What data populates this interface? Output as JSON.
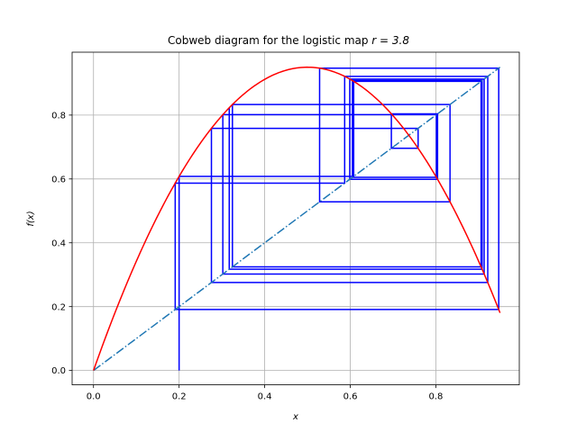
{
  "chart_data": {
    "type": "line",
    "title_prefix": "Cobweb diagram for the logistic map ",
    "title_math": "r = 3.8",
    "xlabel": "x",
    "ylabel": "f(x)",
    "xlim": [
      -0.05,
      0.995
    ],
    "ylim": [
      -0.045,
      0.997
    ],
    "xticks": [
      0.0,
      0.2,
      0.4,
      0.6,
      0.8
    ],
    "yticks": [
      0.0,
      0.2,
      0.4,
      0.6,
      0.8
    ],
    "xtick_labels": [
      "0.0",
      "0.2",
      "0.4",
      "0.6",
      "0.8"
    ],
    "ytick_labels": [
      "0.0",
      "0.2",
      "0.4",
      "0.6",
      "0.8"
    ],
    "grid": true,
    "r": 3.8,
    "x0": 0.2,
    "iterations": 20,
    "series": [
      {
        "kind": "function",
        "expr": "r*x*(1-x)",
        "domain": [
          0.0,
          0.95
        ],
        "color": "#ff0000",
        "style": "solid"
      },
      {
        "kind": "identity",
        "expr": "y = x",
        "domain": [
          0.0,
          0.95
        ],
        "color": "#1f77b4",
        "style": "dashdot"
      },
      {
        "kind": "cobweb",
        "start": 0.2,
        "color": "#0000ff",
        "style": "solid"
      }
    ]
  }
}
